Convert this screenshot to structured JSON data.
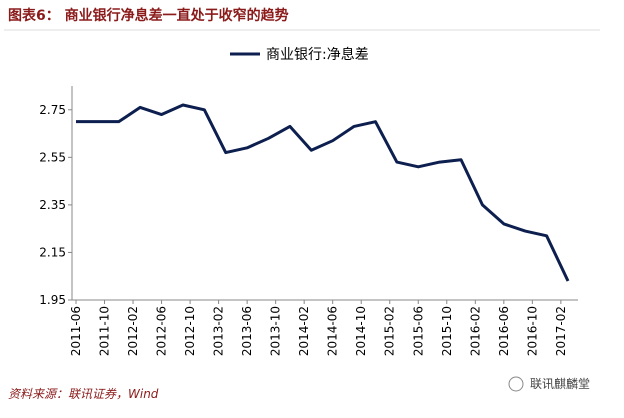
{
  "chart_data": {
    "type": "line",
    "title": "图表6：  商业银行净息差一直处于收窄的趋势",
    "source": "资料来源：联讯证券，Wind",
    "logo": "联讯麒麟堂",
    "x": [
      "2011-06",
      "2011-09",
      "2011-12",
      "2012-03",
      "2012-06",
      "2012-09",
      "2012-12",
      "2013-03",
      "2013-06",
      "2013-09",
      "2013-12",
      "2014-03",
      "2014-06",
      "2014-09",
      "2014-12",
      "2015-03",
      "2015-06",
      "2015-09",
      "2015-12",
      "2016-03",
      "2016-06",
      "2016-09",
      "2016-12",
      "2017-03"
    ],
    "series": [
      {
        "name": "商业银行:净息差",
        "color": "#0d1f4f",
        "values": [
          2.7,
          2.7,
          2.7,
          2.76,
          2.73,
          2.77,
          2.75,
          2.57,
          2.59,
          2.63,
          2.68,
          2.58,
          2.62,
          2.68,
          2.7,
          2.53,
          2.51,
          2.53,
          2.54,
          2.35,
          2.27,
          2.24,
          2.22,
          2.03
        ]
      }
    ],
    "xlim": [
      "2011-06",
      "2017-03"
    ],
    "xticks": [
      "2011-06",
      "2011-10",
      "2012-02",
      "2012-06",
      "2012-10",
      "2013-02",
      "2013-06",
      "2013-10",
      "2014-02",
      "2014-06",
      "2014-10",
      "2015-02",
      "2015-06",
      "2015-10",
      "2016-02",
      "2016-06",
      "2016-10",
      "2017-02"
    ],
    "ylim": [
      1.95,
      2.85
    ],
    "yticks": [
      1.95,
      2.15,
      2.35,
      2.55,
      2.75
    ],
    "legend": "top"
  }
}
